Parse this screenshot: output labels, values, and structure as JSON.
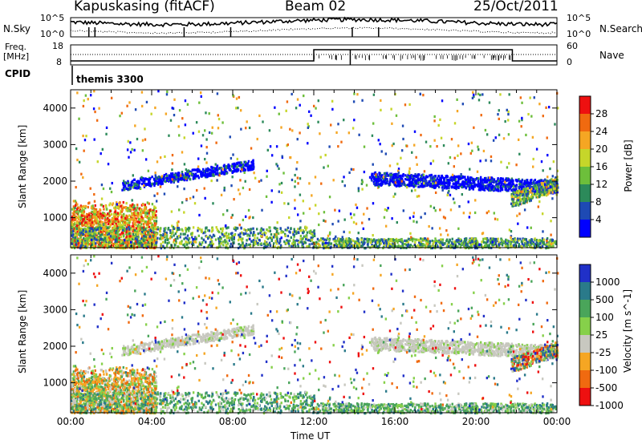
{
  "header": {
    "title": "Kapuskasing (fitACF)",
    "beam": "Beam 02",
    "date": "25/Oct/2011"
  },
  "noise_panel": {
    "left_label": "N.Sky",
    "right_label": "N.Search",
    "left_ticks": [
      "10^5",
      "10^0"
    ],
    "right_ticks": [
      "10^5",
      "10^0"
    ]
  },
  "freq_panel": {
    "left_label_1": "Freq.",
    "left_label_2": "[MHz]",
    "right_label": "Nave",
    "left_ticks": [
      "18",
      "8"
    ],
    "right_ticks": [
      "60",
      "0"
    ]
  },
  "cpid": {
    "label": "CPID",
    "value": "themis 3300"
  },
  "chart_data": [
    {
      "type": "heatmap",
      "panel": "power",
      "ylabel": "Slant Range [km]",
      "xlabel": "",
      "ylim": [
        180,
        4500
      ],
      "y_ticks": [
        "1000",
        "2000",
        "3000",
        "4000"
      ],
      "colorbar": {
        "label": "Power [dB]",
        "ticks": [
          "28",
          "24",
          "20",
          "16",
          "12",
          "8",
          "4"
        ],
        "colors": [
          "#0000ff",
          "#1e4ab4",
          "#2c8a5a",
          "#6dbf3b",
          "#c6d62a",
          "#f5a623",
          "#f06a10",
          "#ee1010"
        ]
      }
    },
    {
      "type": "heatmap",
      "panel": "velocity",
      "ylabel": "Slant Range [km]",
      "xlabel": "Time UT",
      "ylim": [
        180,
        4500
      ],
      "x_ticks": [
        "00:00",
        "04:00",
        "08:00",
        "12:00",
        "16:00",
        "20:00",
        "00:00"
      ],
      "y_ticks": [
        "1000",
        "2000",
        "3000",
        "4000"
      ],
      "colorbar": {
        "label": "Velocity [m s^-1]",
        "ticks": [
          "1000",
          "500",
          "100",
          "25",
          "-25",
          "-100",
          "-500",
          "-1000"
        ],
        "colors": [
          "#2030c8",
          "#2a7a8a",
          "#4aa55a",
          "#86d04a",
          "#c8c8c0",
          "#f5a623",
          "#f06a10",
          "#ee1010"
        ]
      }
    }
  ]
}
